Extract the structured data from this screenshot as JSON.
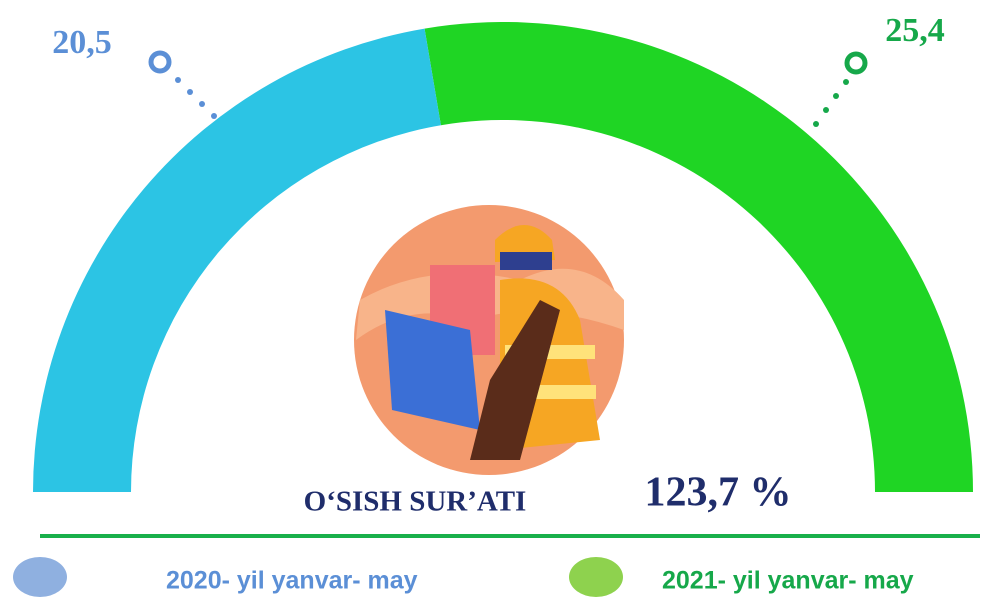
{
  "chart_data": {
    "type": "pie",
    "categories": [
      "2020- yil yanvar- may",
      "2021- yil yanvar- may"
    ],
    "values": [
      20.5,
      25.4
    ],
    "value_labels": [
      "20,5",
      "25,4"
    ],
    "colors": [
      "#2cc4e4",
      "#1fd524"
    ],
    "label_colors": [
      "#5b8fd6",
      "#16a84a"
    ],
    "legend_colors": [
      "#8fb0e0",
      "#8ed24e"
    ],
    "annotation": {
      "title": "O‘SISH SUR’ATI",
      "value": 123.7,
      "value_label": "123,7 %"
    }
  }
}
